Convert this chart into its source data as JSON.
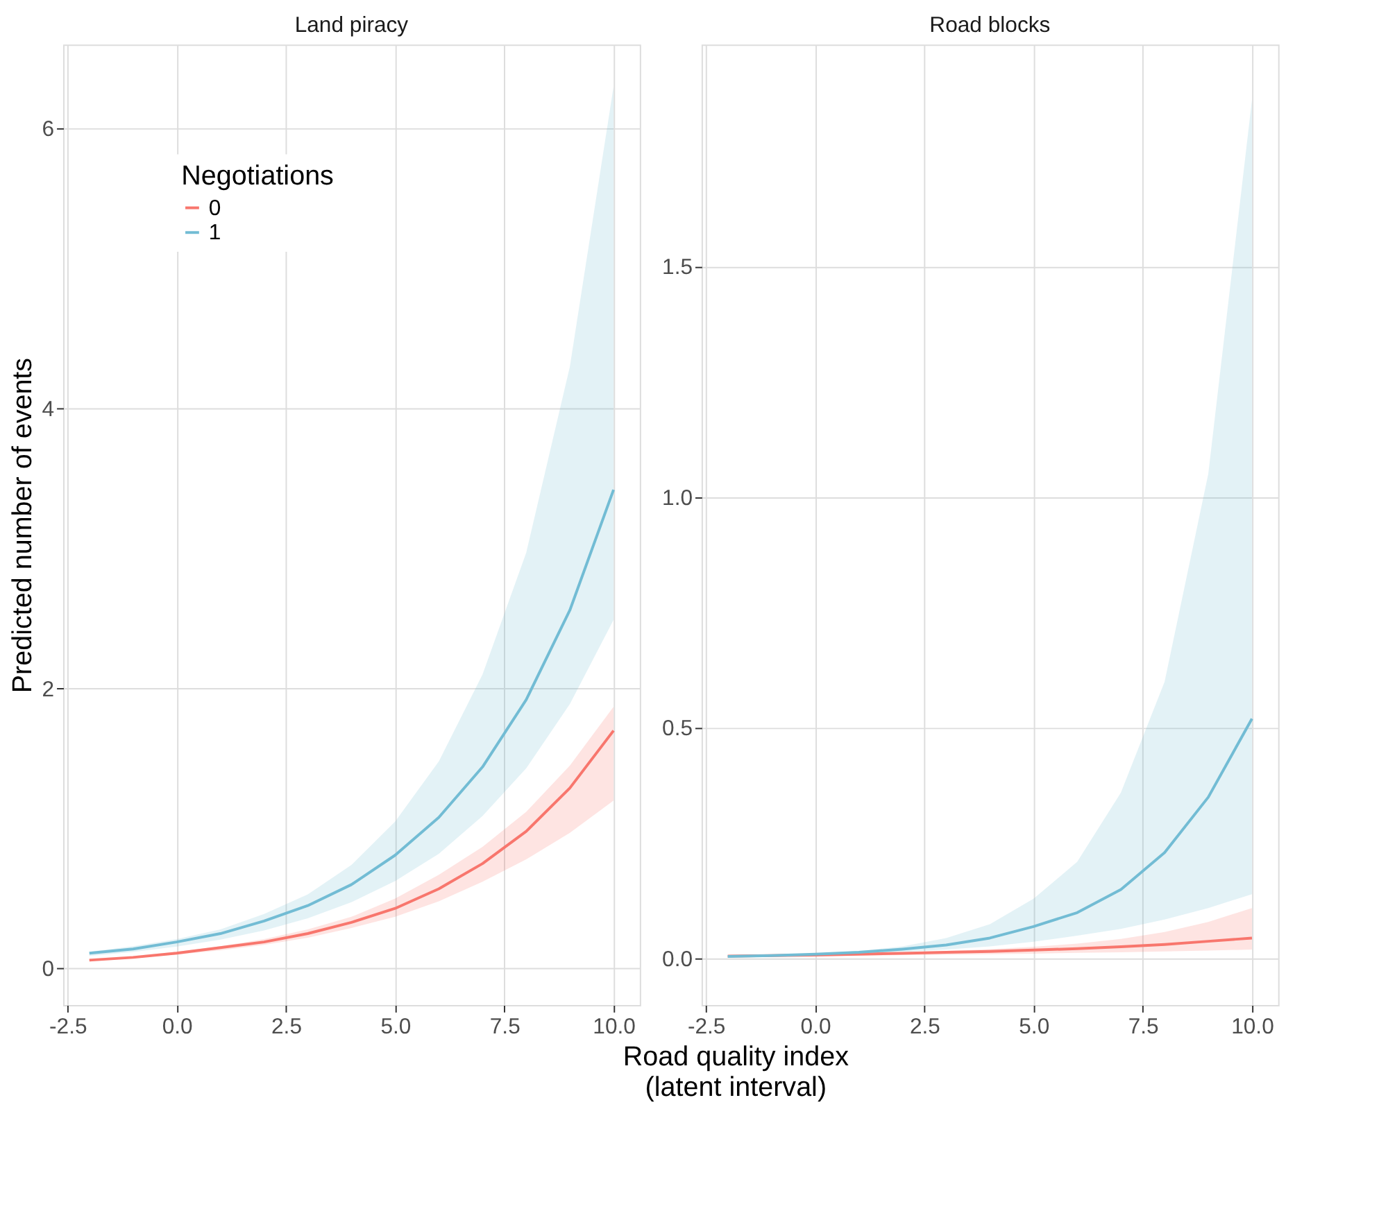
{
  "chart_data": [
    {
      "type": "line",
      "title": "Land piracy",
      "ylabel": "Predicted number of events",
      "xlabel": "Road quality index\n(latent interval)",
      "legend_title": "Negotiations",
      "legend": "top left",
      "grid": true,
      "x": [
        -2,
        -1,
        0,
        1,
        2,
        3,
        4,
        5,
        6,
        7,
        8,
        9,
        10
      ],
      "xlim": [
        -2.6,
        10.6
      ],
      "xticks": [
        -2.5,
        {
          "value": 0,
          "label": "0.0"
        },
        2.5,
        {
          "value": 5,
          "label": "5.0"
        },
        7.5,
        {
          "value": 10,
          "label": "10.0"
        }
      ],
      "ylim": [
        -0.26,
        6.6
      ],
      "yticks": [
        0,
        2,
        4,
        6
      ],
      "series": [
        {
          "name": "0",
          "color": "#f8766d",
          "values": [
            0.06,
            0.08,
            0.11,
            0.15,
            0.19,
            0.25,
            0.33,
            0.43,
            0.57,
            0.75,
            0.98,
            1.29,
            1.7
          ],
          "lower": [
            0.058,
            0.077,
            0.1,
            0.13,
            0.17,
            0.22,
            0.29,
            0.37,
            0.48,
            0.62,
            0.78,
            0.97,
            1.2
          ],
          "upper": [
            0.07,
            0.09,
            0.12,
            0.16,
            0.21,
            0.28,
            0.37,
            0.5,
            0.67,
            0.87,
            1.12,
            1.45,
            1.87
          ]
        },
        {
          "name": "1",
          "color": "#72bcd4",
          "values": [
            0.11,
            0.14,
            0.19,
            0.25,
            0.34,
            0.45,
            0.6,
            0.81,
            1.08,
            1.44,
            1.92,
            2.56,
            3.42
          ],
          "lower": [
            0.09,
            0.119,
            0.157,
            0.207,
            0.272,
            0.359,
            0.474,
            0.625,
            0.82,
            1.09,
            1.43,
            1.89,
            2.49
          ],
          "upper": [
            0.12,
            0.16,
            0.21,
            0.28,
            0.39,
            0.53,
            0.74,
            1.05,
            1.48,
            2.1,
            2.97,
            4.3,
            6.3
          ]
        }
      ]
    },
    {
      "type": "line",
      "title": "Road blocks",
      "grid": true,
      "x": [
        -2,
        -1,
        0,
        1,
        2,
        3,
        4,
        5,
        6,
        7,
        8,
        9,
        10
      ],
      "xlim": [
        -2.6,
        10.6
      ],
      "xticks": [
        -2.5,
        {
          "value": 0,
          "label": "0.0"
        },
        2.5,
        {
          "value": 5,
          "label": "5.0"
        },
        7.5,
        {
          "value": 10,
          "label": "10.0"
        }
      ],
      "ylim": [
        -0.1,
        1.98
      ],
      "yticks": [
        {
          "value": 0,
          "label": "0.0"
        },
        0.5,
        {
          "value": 1,
          "label": "1.0"
        },
        1.5
      ],
      "series": [
        {
          "color": "#f8766d",
          "values": [
            0.006,
            0.007,
            0.008,
            0.01,
            0.012,
            0.014,
            0.016,
            0.019,
            0.022,
            0.026,
            0.031,
            0.038,
            0.045
          ],
          "lower": [
            0.004,
            0.005,
            0.006,
            0.007,
            0.008,
            0.009,
            0.01,
            0.011,
            0.013,
            0.014,
            0.016,
            0.018,
            0.02
          ],
          "upper": [
            0.007,
            0.008,
            0.01,
            0.012,
            0.014,
            0.017,
            0.021,
            0.026,
            0.033,
            0.043,
            0.058,
            0.08,
            0.11
          ]
        },
        {
          "color": "#72bcd4",
          "values": [
            0.005,
            0.007,
            0.01,
            0.014,
            0.021,
            0.03,
            0.045,
            0.07,
            0.1,
            0.15,
            0.23,
            0.35,
            0.52
          ],
          "lower": [
            0.004,
            0.006,
            0.008,
            0.011,
            0.015,
            0.02,
            0.027,
            0.037,
            0.05,
            0.065,
            0.085,
            0.11,
            0.14
          ],
          "upper": [
            0.006,
            0.008,
            0.011,
            0.017,
            0.027,
            0.045,
            0.075,
            0.13,
            0.21,
            0.36,
            0.6,
            1.05,
            1.86
          ]
        }
      ]
    }
  ]
}
